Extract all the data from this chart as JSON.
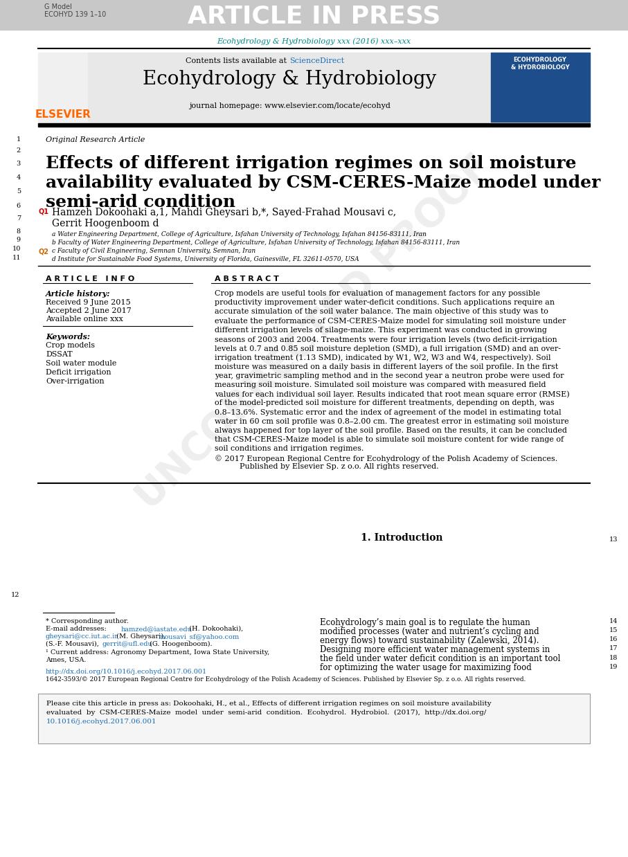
{
  "bg_color": "#ffffff",
  "header_bg": "#c8c8c8",
  "header_text": "ARTICLE IN PRESS",
  "journal_title": "Ecohydrology & Hydrobiology",
  "journal_url_text": "journal homepage: www.elsevier.com/locate/ecohyd",
  "contents_text": "Contents lists available at ",
  "sciencedirect_text": "ScienceDirect",
  "journal_info_line": "Ecohydrology & Hydrobiology xxx (2016) xxx–xxx",
  "elsevier_color": "#FF6600",
  "teal_color": "#008B8B",
  "blue_link": "#1a6eb5",
  "section_label": "Original Research Article",
  "paper_title_line1": "Effects of different irrigation regimes on soil moisture",
  "paper_title_line2": "availability evaluated by CSM-CERES-Maize model under",
  "paper_title_line3": "semi-arid condition",
  "authors": "Hamzeh Dokoohaki a,1, Mahdi Gheysari b,*, Sayed-Frahad Mousavi c,",
  "authors2": "Gerrit Hoogenboom d",
  "affil_a": "a Water Engineering Department, College of Agriculture, Isfahan University of Technology, Isfahan 84156-83111, Iran",
  "affil_b": "b Faculty of Water Engineering Department, College of Agriculture, Isfahan University of Technology, Isfahan 84156-83111, Iran",
  "affil_c": "c Faculty of Civil Engineering, Semnan University, Semnan, Iran",
  "affil_d": "d Institute for Sustainable Food Systems, University of Florida, Gainesville, FL 32611-0570, USA",
  "article_info_header": "A R T I C L E   I N F O",
  "abstract_header": "A B S T R A C T",
  "keywords_header": "Keywords:",
  "keywords": [
    "Crop models",
    "DSSAT",
    "Soil water module",
    "Deficit irrigation",
    "Over-irrigation"
  ],
  "abs_lines": [
    "Crop models are useful tools for evaluation of management factors for any possible",
    "productivity improvement under water-deficit conditions. Such applications require an",
    "accurate simulation of the soil water balance. The main objective of this study was to",
    "evaluate the performance of CSM-CERES-Maize model for simulating soil moisture under",
    "different irrigation levels of silage-maize. This experiment was conducted in growing",
    "seasons of 2003 and 2004. Treatments were four irrigation levels (two deficit-irrigation",
    "levels at 0.7 and 0.85 soil moisture depletion (SMD), a full irrigation (SMD) and an over-",
    "irrigation treatment (1.13 SMD), indicated by W1, W2, W3 and W4, respectively). Soil",
    "moisture was measured on a daily basis in different layers of the soil profile. In the first",
    "year, gravimetric sampling method and in the second year a neutron probe were used for",
    "measuring soil moisture. Simulated soil moisture was compared with measured field",
    "values for each individual soil layer. Results indicated that root mean square error (RMSE)",
    "of the model-predicted soil moisture for different treatments, depending on depth, was",
    "0.8–13.6%. Systematic error and the index of agreement of the model in estimating total",
    "water in 60 cm soil profile was 0.8–2.00 cm. The greatest error in estimating soil moisture",
    "always happened for top layer of the soil profile. Based on the results, it can be concluded",
    "that CSM-CERES-Maize model is able to simulate soil moisture content for wide range of",
    "soil conditions and irrigation regimes."
  ],
  "intro_header": "1. Introduction",
  "intro_lines": [
    "Ecohydrology’s main goal is to regulate the human",
    "modified processes (water and nutrient’s cycling and",
    "energy flows) toward sustainability (Zalewski, 2014).",
    "Designing more efficient water management systems in",
    "the field under water deficit condition is an important tool",
    "for optimizing the water usage for maximizing food"
  ],
  "q1_color": "#cc0000",
  "q2_color": "#cc6600",
  "watermark_color": "#c8c8c8"
}
